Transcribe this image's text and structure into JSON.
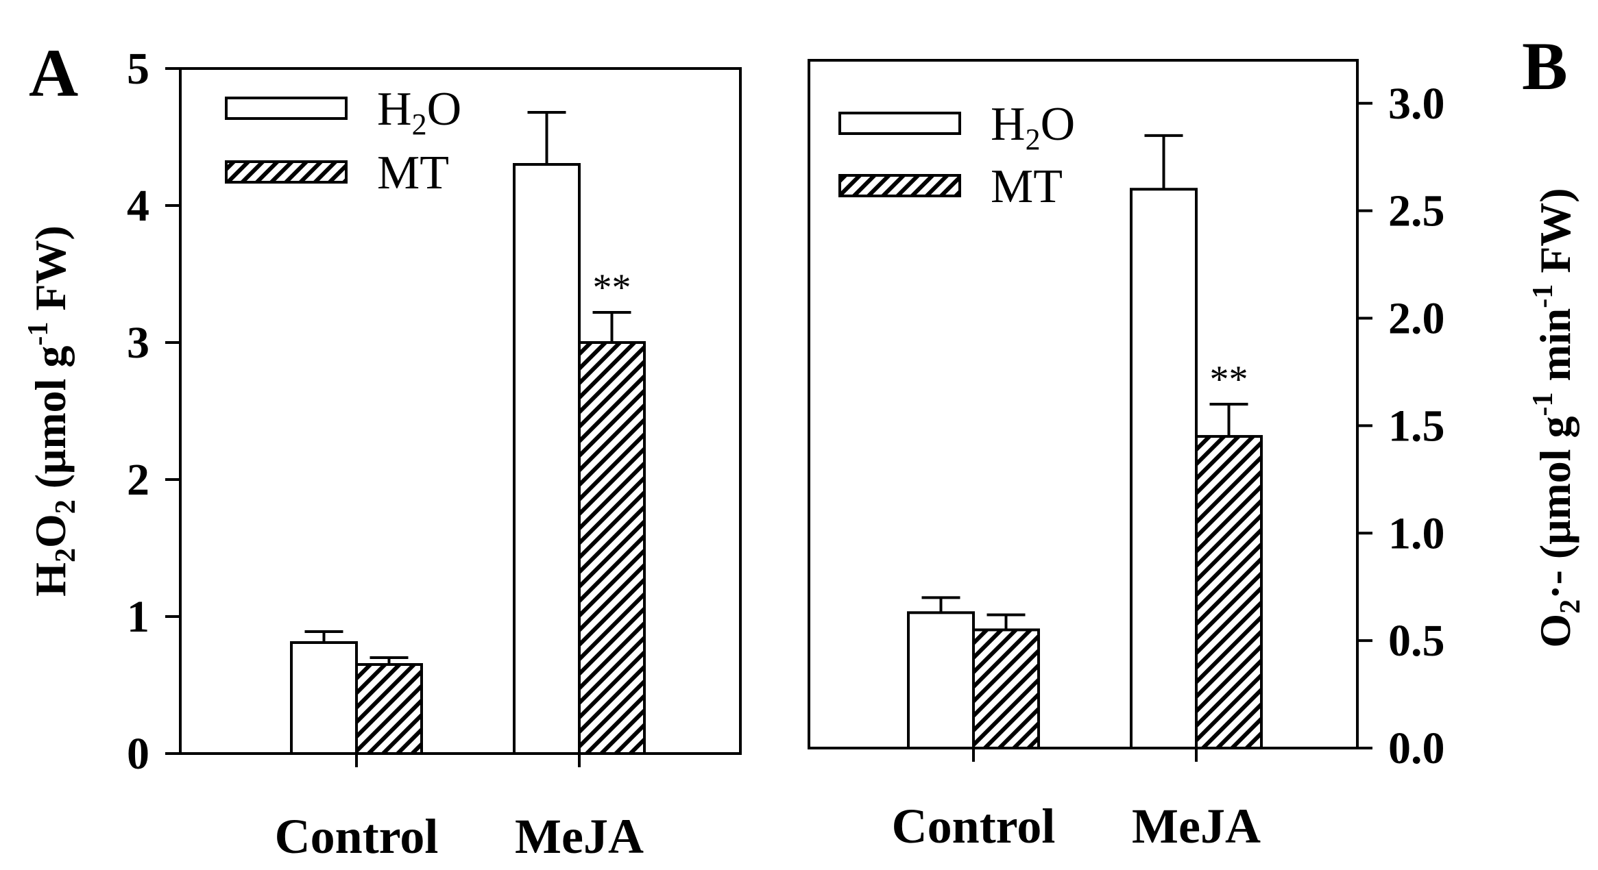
{
  "chart_data": [
    {
      "type": "bar",
      "panel_label": "A",
      "categories": [
        "Control",
        "MeJA"
      ],
      "series": [
        {
          "name": "H2O",
          "pattern": "open",
          "values": [
            0.81,
            4.3
          ],
          "errors": [
            0.08,
            0.38
          ]
        },
        {
          "name": "MT",
          "pattern": "hatched",
          "values": [
            0.65,
            3.0
          ],
          "errors": [
            0.05,
            0.22
          ]
        }
      ],
      "significance": [
        {
          "category": "MeJA",
          "series": "MT",
          "text": "**"
        }
      ],
      "ylabel": {
        "main": "H",
        "sub1": "2",
        "mid": "O",
        "sub2": "2",
        "unit": " (μmol g",
        "exp": "-1",
        "end": " FW)"
      },
      "ylim": [
        0,
        5
      ],
      "yticks": [
        "0",
        "1",
        "2",
        "3",
        "4",
        "5"
      ],
      "y_axis_side": "left",
      "legend": {
        "placement": "top-left",
        "entries": [
          {
            "base": "H",
            "sub": "2",
            "tail": "O"
          },
          {
            "base": "MT",
            "sub": "",
            "tail": ""
          }
        ]
      }
    },
    {
      "type": "bar",
      "panel_label": "B",
      "categories": [
        "Control",
        "MeJA"
      ],
      "series": [
        {
          "name": "H2O",
          "pattern": "open",
          "values": [
            0.63,
            2.6
          ],
          "errors": [
            0.07,
            0.25
          ]
        },
        {
          "name": "MT",
          "pattern": "hatched",
          "values": [
            0.55,
            1.45
          ],
          "errors": [
            0.07,
            0.15
          ]
        }
      ],
      "significance": [
        {
          "category": "MeJA",
          "series": "MT",
          "text": "**"
        }
      ],
      "ylabel": {
        "main": "O",
        "sub1": "2",
        "mid": "·-",
        "sub2": "",
        "unit": " (μmol g",
        "exp": "-1",
        "mid2": " min",
        "exp2": "-1",
        "end": " FW)"
      },
      "ylim": [
        0,
        3.2
      ],
      "yticks": [
        "0.0",
        "0.5",
        "1.0",
        "1.5",
        "2.0",
        "2.5",
        "3.0"
      ],
      "y_axis_side": "right",
      "legend": {
        "placement": "top-left",
        "entries": [
          {
            "base": "H",
            "sub": "2",
            "tail": "O"
          },
          {
            "base": "MT",
            "sub": "",
            "tail": ""
          }
        ]
      }
    }
  ]
}
